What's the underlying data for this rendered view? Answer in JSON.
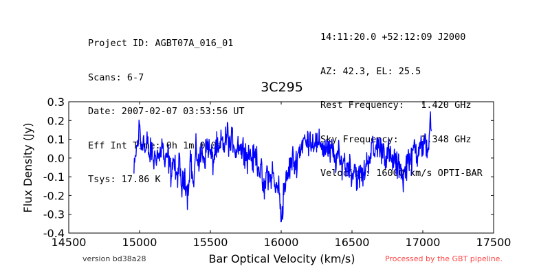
{
  "header": {
    "left": [
      "Project ID: AGBT07A_016_01",
      "Scans: 6-7",
      "Date: 2007-02-07 03:53:56 UT",
      "Eff Int Time: 0h 1m 0.0s",
      "Tsys: 17.86 K"
    ],
    "right": [
      "14:11:20.0 +52:12:09 J2000",
      "AZ: 42.3, EL: 25.5",
      "Rest Frequency:   1.420 GHz",
      "Sky Frequency:    1.348 GHz",
      "Velocity: 16000 km/s OPTI-BAR"
    ]
  },
  "footer": {
    "version": "version bd38a28",
    "pipeline": "Processed by the GBT pipeline.",
    "pipeline_color": "#ff4444"
  },
  "chart_data": {
    "type": "line",
    "title": "3C295",
    "xlabel": "Bar Optical Velocity (km/s)",
    "ylabel": "Flux Density (Jy)",
    "xlim": [
      14500,
      17500
    ],
    "ylim": [
      -0.4,
      0.3
    ],
    "x_ticks": [
      "14500",
      "15000",
      "15500",
      "16000",
      "16500",
      "17000",
      "17500"
    ],
    "y_ticks": [
      "0.3",
      "0.2",
      "0.1",
      "0.0",
      "-0.1",
      "-0.2",
      "-0.3",
      "-0.4"
    ],
    "grid": false,
    "series": [
      {
        "color": "#0000ff",
        "x_range": [
          14960,
          17060
        ],
        "points": [
          [
            14960,
            -0.09
          ],
          [
            14975,
            0.03
          ],
          [
            14990,
            0.09
          ],
          [
            15000,
            0.19
          ],
          [
            15010,
            0.05
          ],
          [
            15025,
            0.12
          ],
          [
            15040,
            0.02
          ],
          [
            15055,
            0.09
          ],
          [
            15070,
            0.0
          ],
          [
            15085,
            0.05
          ],
          [
            15100,
            -0.02
          ],
          [
            15120,
            0.03
          ],
          [
            15140,
            0.0
          ],
          [
            15160,
            0.08
          ],
          [
            15180,
            -0.05
          ],
          [
            15200,
            0.02
          ],
          [
            15220,
            -0.08
          ],
          [
            15240,
            0.0
          ],
          [
            15260,
            -0.12
          ],
          [
            15280,
            -0.03
          ],
          [
            15300,
            -0.17
          ],
          [
            15320,
            -0.08
          ],
          [
            15340,
            -0.2
          ],
          [
            15360,
            0.02
          ],
          [
            15380,
            -0.16
          ],
          [
            15400,
            0.05
          ],
          [
            15420,
            -0.04
          ],
          [
            15440,
            0.04
          ],
          [
            15460,
            0.0
          ],
          [
            15480,
            0.08
          ],
          [
            15500,
            0.02
          ],
          [
            15520,
            -0.02
          ],
          [
            15540,
            0.06
          ],
          [
            15560,
            0.02
          ],
          [
            15580,
            0.09
          ],
          [
            15600,
            0.06
          ],
          [
            15620,
            0.14
          ],
          [
            15640,
            0.05
          ],
          [
            15660,
            0.11
          ],
          [
            15680,
            0.03
          ],
          [
            15700,
            0.09
          ],
          [
            15720,
            0.04
          ],
          [
            15740,
            0.06
          ],
          [
            15760,
            0.0
          ],
          [
            15780,
            0.03
          ],
          [
            15800,
            -0.02
          ],
          [
            15820,
            0.02
          ],
          [
            15840,
            -0.04
          ],
          [
            15860,
            -0.08
          ],
          [
            15880,
            -0.2
          ],
          [
            15900,
            -0.06
          ],
          [
            15920,
            -0.12
          ],
          [
            15940,
            -0.07
          ],
          [
            15960,
            -0.18
          ],
          [
            15980,
            -0.12
          ],
          [
            15990,
            -0.24
          ],
          [
            16000,
            -0.32
          ],
          [
            16010,
            -0.26
          ],
          [
            16020,
            -0.15
          ],
          [
            16040,
            -0.12
          ],
          [
            16060,
            -0.05
          ],
          [
            16080,
            0.0
          ],
          [
            16100,
            -0.04
          ],
          [
            16120,
            0.03
          ],
          [
            16140,
            0.06
          ],
          [
            16160,
            0.1
          ],
          [
            16180,
            0.07
          ],
          [
            16200,
            0.12
          ],
          [
            16220,
            0.08
          ],
          [
            16240,
            0.1
          ],
          [
            16260,
            0.05
          ],
          [
            16280,
            0.09
          ],
          [
            16300,
            0.04
          ],
          [
            16320,
            0.07
          ],
          [
            16340,
            0.02
          ],
          [
            16360,
            0.04
          ],
          [
            16380,
            -0.02
          ],
          [
            16400,
            0.02
          ],
          [
            16420,
            -0.04
          ],
          [
            16440,
            0.0
          ],
          [
            16460,
            -0.06
          ],
          [
            16480,
            -0.02
          ],
          [
            16500,
            -0.09
          ],
          [
            16520,
            -0.04
          ],
          [
            16540,
            -0.13
          ],
          [
            16560,
            -0.08
          ],
          [
            16580,
            -0.1
          ],
          [
            16600,
            -0.03
          ],
          [
            16620,
            0.0
          ],
          [
            16640,
            0.06
          ],
          [
            16660,
            0.02
          ],
          [
            16680,
            0.08
          ],
          [
            16700,
            0.04
          ],
          [
            16720,
            0.06
          ],
          [
            16740,
            0.0
          ],
          [
            16760,
            0.03
          ],
          [
            16780,
            -0.03
          ],
          [
            16800,
            0.0
          ],
          [
            16820,
            -0.06
          ],
          [
            16840,
            -0.02
          ],
          [
            16860,
            -0.12
          ],
          [
            16880,
            -0.05
          ],
          [
            16900,
            0.02
          ],
          [
            16920,
            -0.03
          ],
          [
            16940,
            0.07
          ],
          [
            16960,
            0.02
          ],
          [
            16980,
            0.1
          ],
          [
            17000,
            0.03
          ],
          [
            17020,
            0.08
          ],
          [
            17040,
            0.05
          ],
          [
            17050,
            0.21
          ],
          [
            17060,
            0.15
          ]
        ]
      }
    ]
  }
}
